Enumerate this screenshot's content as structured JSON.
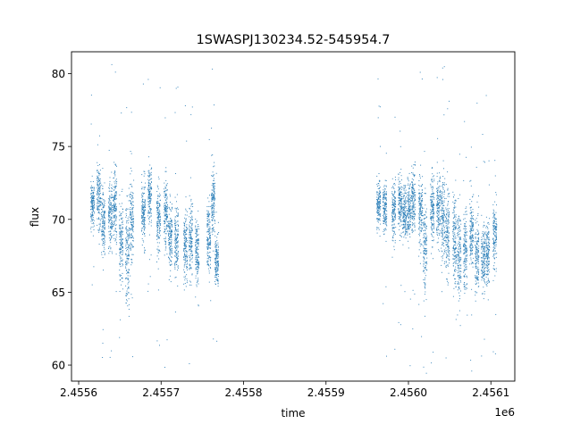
{
  "chart_data": {
    "type": "scatter",
    "title": "1SWASPJ130234.52-545954.7",
    "xlabel": "time",
    "ylabel": "flux",
    "x_offset_label": "1e6",
    "xlim": [
      2455591.3,
      2456129.0
    ],
    "ylim": [
      58.9,
      81.5
    ],
    "x_ticks": [
      2455600,
      2455700,
      2455800,
      2455900,
      2456000,
      2456100
    ],
    "x_tick_labels": [
      "2.4556",
      "2.4557",
      "2.4558",
      "2.4559",
      "2.4560",
      "2.4561"
    ],
    "y_ticks": [
      60,
      65,
      70,
      75,
      80
    ],
    "y_tick_labels": [
      "60",
      "65",
      "70",
      "75",
      "80"
    ],
    "grid": false,
    "marker_color": "#1f77b4",
    "note": "Dense light curve; points summarized as observing-night groups [time, mean_flux, scatter_sd]",
    "night_groups": [
      [
        2455616.3,
        71.0,
        1.0
      ],
      [
        2455623.9,
        71.8,
        1.3
      ],
      [
        2455629.3,
        69.6,
        1.5
      ],
      [
        2455638.0,
        70.2,
        1.5
      ],
      [
        2455643.4,
        71.0,
        1.6
      ],
      [
        2455651.0,
        68.3,
        2.0
      ],
      [
        2455658.6,
        67.8,
        2.2
      ],
      [
        2455664.0,
        70.0,
        1.7
      ],
      [
        2455678.1,
        70.5,
        1.3
      ],
      [
        2455685.7,
        71.5,
        1.3
      ],
      [
        2455696.5,
        70.0,
        1.4
      ],
      [
        2455705.2,
        70.5,
        1.4
      ],
      [
        2455710.6,
        69.0,
        1.5
      ],
      [
        2455718.2,
        68.6,
        1.6
      ],
      [
        2455729.1,
        68.2,
        1.5
      ],
      [
        2455735.6,
        68.6,
        1.6
      ],
      [
        2455743.2,
        67.8,
        1.5
      ],
      [
        2455757.3,
        68.6,
        1.5
      ],
      [
        2455762.7,
        71.2,
        1.5
      ],
      [
        2455767.0,
        67.2,
        1.2
      ],
      [
        2455963.3,
        71.0,
        0.9
      ],
      [
        2455970.9,
        70.8,
        1.1
      ],
      [
        2455981.8,
        70.6,
        1.2
      ],
      [
        2455989.4,
        71.0,
        1.2
      ],
      [
        2455994.8,
        70.5,
        1.2
      ],
      [
        2456000.2,
        70.6,
        1.2
      ],
      [
        2456005.6,
        71.5,
        1.4
      ],
      [
        2456014.3,
        70.6,
        1.5
      ],
      [
        2456019.7,
        68.2,
        1.8
      ],
      [
        2456028.4,
        70.8,
        1.6
      ],
      [
        2456036.0,
        71.0,
        1.6
      ],
      [
        2456041.4,
        70.0,
        1.8
      ],
      [
        2456046.9,
        69.0,
        1.8
      ],
      [
        2456055.5,
        68.6,
        2.2
      ],
      [
        2456061.0,
        67.6,
        2.0
      ],
      [
        2456068.5,
        67.6,
        1.8
      ],
      [
        2456076.1,
        69.0,
        1.7
      ],
      [
        2456082.6,
        67.6,
        1.5
      ],
      [
        2456090.2,
        67.2,
        1.4
      ],
      [
        2456095.7,
        67.6,
        1.4
      ],
      [
        2456104.3,
        69.0,
        1.4
      ]
    ]
  }
}
